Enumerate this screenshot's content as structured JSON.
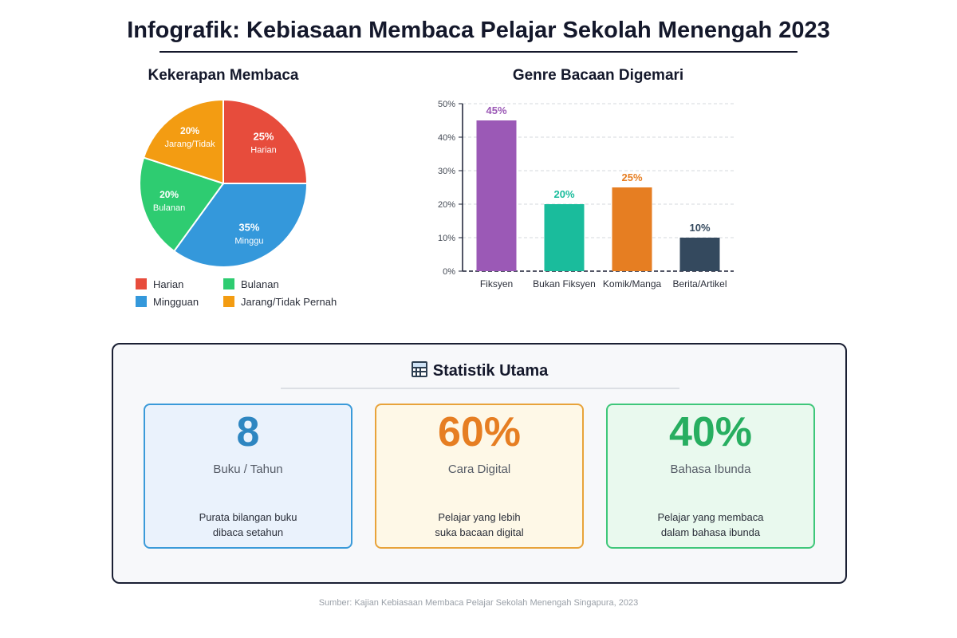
{
  "title": "Infografik: Kebiasaan Membaca Pelajar Sekolah Menengah 2023",
  "pie_title": "Kekerapan Membaca",
  "bar_title": "Genre Bacaan Digemari",
  "chart_data": [
    {
      "type": "pie",
      "title": "Kekerapan Membaca",
      "slices": [
        {
          "label": "Harian",
          "value": 25,
          "value_label": "25%",
          "slice_label": "Harian",
          "color": "#e74c3c"
        },
        {
          "label": "Mingguan",
          "value": 35,
          "value_label": "35%",
          "slice_label": "Minggu",
          "color": "#3498db"
        },
        {
          "label": "Bulanan",
          "value": 20,
          "value_label": "20%",
          "slice_label": "Bulanan",
          "color": "#2ecc71"
        },
        {
          "label": "Jarang/Tidak Pernah",
          "value": 20,
          "value_label": "20%",
          "slice_label": "Jarang/Tidak",
          "color": "#f39c12"
        }
      ],
      "legend": [
        {
          "label": "Harian",
          "color": "#e74c3c"
        },
        {
          "label": "Bulanan",
          "color": "#2ecc71"
        },
        {
          "label": "Mingguan",
          "color": "#3498db"
        },
        {
          "label": "Jarang/Tidak Pernah",
          "color": "#f39c12"
        }
      ]
    },
    {
      "type": "bar",
      "title": "Genre Bacaan Digemari",
      "categories": [
        "Fiksyen",
        "Bukan Fiksyen",
        "Komik/Manga",
        "Berita/Artikel"
      ],
      "values": [
        45,
        20,
        25,
        10
      ],
      "value_labels": [
        "45%",
        "20%",
        "25%",
        "10%"
      ],
      "colors": [
        "#9b59b6",
        "#1abc9c",
        "#e67e22",
        "#34495e"
      ],
      "yticks": [
        "0%",
        "10%",
        "20%",
        "30%",
        "40%",
        "50%"
      ],
      "ylim": [
        0,
        50
      ],
      "grid": true
    }
  ],
  "stats": {
    "title": "Statistik Utama",
    "icon": "abacus-icon",
    "cards": [
      {
        "value": "8",
        "label": "Buku / Tahun",
        "desc_line1": "Purata bilangan buku",
        "desc_line2": "dibaca setahun",
        "color": "#2e86c1",
        "border": "#3a9ad9",
        "bg": "#eaf2fc"
      },
      {
        "value": "60%",
        "label": "Cara Digital",
        "desc_line1": "Pelajar yang lebih",
        "desc_line2": "suka bacaan digital",
        "color": "#e67e22",
        "border": "#e8a33a",
        "bg": "#fef8e7"
      },
      {
        "value": "40%",
        "label": "Bahasa Ibunda",
        "desc_line1": "Pelajar yang membaca",
        "desc_line2": "dalam bahasa ibunda",
        "color": "#27ae60",
        "border": "#3fc77a",
        "bg": "#e9f9ee"
      }
    ]
  },
  "source": "Sumber: Kajian Kebiasaan Membaca Pelajar Sekolah Menengah Singapura, 2023"
}
